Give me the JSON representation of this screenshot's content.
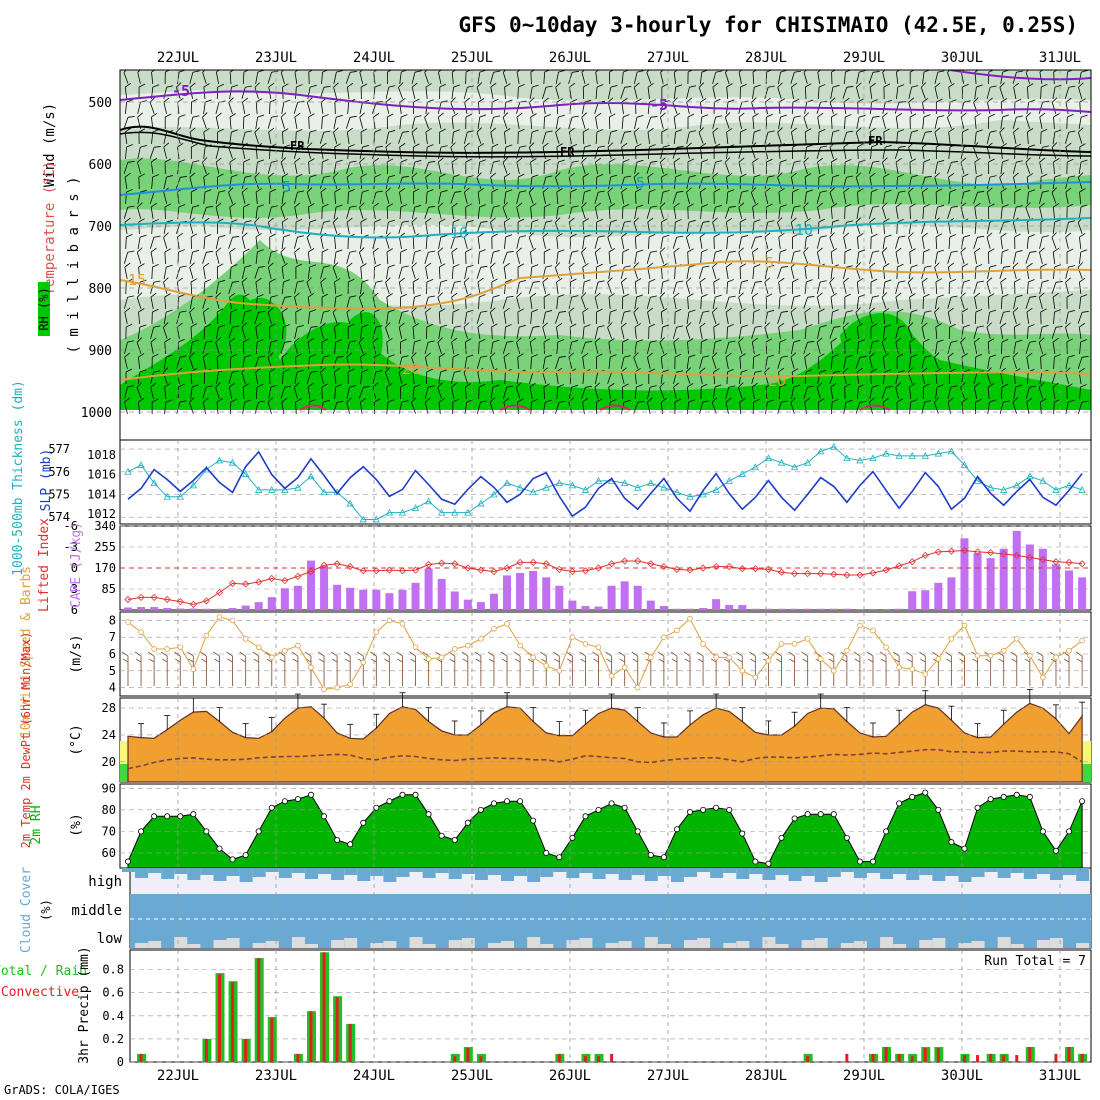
{
  "title": "GFS 0~10day 3-hourly for CHISIMAIO (42.5E, 0.25S)",
  "credit": "GrADS: COLA/IGES",
  "run_total": "Run Total = 7",
  "dates": [
    "22JUL",
    "23JUL",
    "24JUL",
    "25JUL",
    "26JUL",
    "27JUL",
    "28JUL",
    "29JUL",
    "30JUL",
    "31JUL"
  ],
  "colors": {
    "rh_dark": "#00c800",
    "rh_mid": "#78d278",
    "rh_light": "#c8dcc8",
    "rh_pale": "#e8f0e8",
    "slp": "#1e3cc8",
    "thick": "#20b0c0",
    "cape": "#c070f0",
    "li": "#e03030",
    "wind": "#e0a040",
    "temp_fill": "#f0a030",
    "dew": "#804040",
    "rh2m": "#00b400",
    "cloud": "#6aaad2",
    "precip_total": "#20c020",
    "precip_conv": "#e02020"
  },
  "panels": {
    "sounding": {
      "ylabel_wind": "Wind (m/s)",
      "ylabel_temp": "Temperature (°C)",
      "ylabel_rh": "RH (%)",
      "ylabel_p": "( m i l l i b a r s )",
      "levels": [
        "500",
        "600",
        "700",
        "800",
        "900",
        "1000"
      ],
      "contour_labels": {
        "m5": "-5",
        "fr": "FR",
        "t5": "5",
        "t10": "10",
        "t15": "15",
        "t20": "20"
      }
    },
    "slp": {
      "ylabel_thick": "1000-500mb Thickness (dm)",
      "ylabel_slp": "SLP (mb)",
      "left_ticks": [
        "577",
        "576",
        "575",
        "574"
      ],
      "right_ticks": [
        "1018",
        "1016",
        "1014",
        "1012"
      ]
    },
    "cape": {
      "ylabel_li": "Lifted Index",
      "ylabel_cape": "CAPE (J/kg)",
      "left_ticks": [
        "-6",
        "-3",
        "0",
        "3",
        "6"
      ],
      "right_ticks": [
        "340",
        "255",
        "170",
        "85"
      ]
    },
    "wind": {
      "ylabel": "10m Wind Speed & Barbs",
      "unit": "(m/s)",
      "ticks": [
        "8",
        "7",
        "6",
        "5",
        "4"
      ]
    },
    "temp": {
      "ylabel": "2m Temp 2m DewPt (6hr Min/Max)",
      "unit": "(°C)",
      "ticks": [
        "28",
        "24",
        "20"
      ]
    },
    "rh": {
      "ylabel": "2m RH",
      "unit": "(%)",
      "ticks": [
        "90",
        "80",
        "70",
        "60"
      ]
    },
    "cloud": {
      "ylabel": "Cloud Cover",
      "unit": "(%)",
      "levels": [
        "high",
        "middle",
        "low"
      ]
    },
    "precip": {
      "ylabel_total": "Total / Rain",
      "ylabel_conv": "Convective",
      "ylabel": "3hr Precip (mm)",
      "ticks": [
        "0.8",
        "0.6",
        "0.4",
        "0.2",
        "0"
      ]
    }
  },
  "chart_data": [
    {
      "type": "line",
      "name": "SLP (mb)",
      "ylim": [
        1011,
        1019.5
      ],
      "values": [
        1013.5,
        1014.6,
        1016.5,
        1015.5,
        1014.3,
        1015.4,
        1016.7,
        1015.2,
        1014.2,
        1016.8,
        1018.3,
        1016.0,
        1014.6,
        1015.7,
        1017.6,
        1015.9,
        1014.1,
        1015.7,
        1016.8,
        1015.5,
        1013.8,
        1014.5,
        1016.4,
        1015.0,
        1013.5,
        1013.0,
        1014.5,
        1015.8,
        1014.7,
        1013.2,
        1014.0,
        1015.6,
        1016.2,
        1013.8,
        1011.8,
        1012.7,
        1014.6,
        1015.6,
        1013.6,
        1012.5,
        1014.1,
        1015.6,
        1013.6,
        1012.3,
        1014.4,
        1016.1,
        1014.1,
        1012.5,
        1013.7,
        1015.4,
        1013.7,
        1012.4,
        1014.0,
        1015.7,
        1014.8,
        1013.2,
        1014.9,
        1016.3,
        1014.4,
        1012.6,
        1014.3,
        1016.2,
        1014.8,
        1012.5,
        1013.6,
        1015.8,
        1014.1,
        1012.9,
        1014.3,
        1015.5,
        1013.7,
        1012.9,
        1014.4,
        1016.1
      ]
    },
    {
      "type": "line",
      "name": "1000-500mb Thickness (dm)",
      "ylim": [
        573.7,
        577.4
      ],
      "values": [
        576.0,
        576.3,
        575.5,
        574.9,
        574.9,
        575.4,
        576.1,
        576.5,
        576.4,
        575.9,
        575.2,
        575.2,
        575.2,
        575.3,
        575.8,
        575.1,
        575.1,
        574.6,
        573.9,
        573.9,
        574.2,
        574.2,
        574.4,
        574.7,
        574.2,
        574.2,
        574.2,
        574.6,
        575.0,
        575.5,
        575.3,
        575.1,
        575.3,
        575.5,
        575.4,
        575.2,
        575.6,
        575.6,
        575.5,
        575.3,
        575.5,
        575.3,
        575.1,
        574.9,
        575.0,
        575.2,
        575.6,
        575.9,
        576.2,
        576.6,
        576.4,
        576.2,
        576.4,
        576.9,
        577.1,
        576.6,
        576.5,
        576.6,
        576.8,
        576.7,
        576.7,
        576.7,
        576.8,
        576.9,
        576.3,
        575.6,
        575.3,
        575.2,
        575.4,
        575.8,
        575.6,
        575.2,
        575.4,
        575.2
      ]
    },
    {
      "type": "bar",
      "name": "CAPE (J/kg)",
      "ylim": [
        0,
        340
      ],
      "values": [
        10,
        12,
        12,
        8,
        6,
        6,
        5,
        5,
        8,
        18,
        32,
        52,
        88,
        98,
        200,
        178,
        102,
        90,
        82,
        82,
        68,
        82,
        110,
        168,
        126,
        75,
        42,
        32,
        66,
        140,
        150,
        158,
        132,
        98,
        38,
        16,
        14,
        98,
        116,
        98,
        38,
        16,
        5,
        5,
        8,
        44,
        20,
        20,
        5,
        5,
        5,
        5,
        5,
        5,
        5,
        5,
        4,
        4,
        4,
        5,
        76,
        80,
        110,
        132,
        290,
        230,
        210,
        248,
        320,
        265,
        248,
        185,
        160,
        132
      ]
    },
    {
      "type": "line",
      "name": "Lifted Index",
      "ylim": [
        6,
        -6
      ],
      "values": [
        4.5,
        4.2,
        4.2,
        4.5,
        4.8,
        5.2,
        4.7,
        3.5,
        2.2,
        2.3,
        2.0,
        1.5,
        1.8,
        1.2,
        0.5,
        -0.4,
        -0.6,
        -0.2,
        0.4,
        0.4,
        0.3,
        0.4,
        0.3,
        -0.5,
        -0.7,
        -0.6,
        0.0,
        0.3,
        0.5,
        0.0,
        -0.8,
        -0.8,
        -0.6,
        0.2,
        0.5,
        0.4,
        0.0,
        -0.6,
        -1.0,
        -1.0,
        -0.6,
        -0.2,
        0.2,
        0.3,
        0.0,
        -0.2,
        -0.2,
        0.1,
        0.1,
        0.2,
        0.6,
        0.8,
        0.8,
        0.8,
        0.9,
        1.0,
        1.0,
        0.7,
        0.3,
        -0.3,
        -0.9,
        -1.8,
        -2.3,
        -2.4,
        -2.5,
        -2.3,
        -2.2,
        -2.0,
        -1.8,
        -1.5,
        -1.2,
        -0.9,
        -0.8,
        -0.6
      ]
    },
    {
      "type": "line",
      "name": "10m Wind Speed (m/s)",
      "ylim": [
        3.5,
        8.5
      ],
      "values": [
        7.9,
        7.3,
        6.3,
        6.3,
        6.4,
        5.1,
        7.1,
        8.2,
        8.0,
        6.9,
        6.4,
        5.8,
        6.2,
        6.5,
        5.2,
        3.9,
        4.0,
        4.2,
        5.5,
        7.3,
        8.0,
        7.8,
        6.4,
        5.7,
        5.8,
        6.3,
        6.5,
        6.9,
        7.5,
        7.8,
        6.5,
        5.8,
        5.3,
        5.0,
        7.0,
        6.6,
        6.4,
        4.7,
        5.2,
        4.0,
        5.8,
        7.0,
        7.4,
        8.1,
        6.6,
        5.8,
        5.8,
        5.0,
        4.6,
        5.6,
        6.6,
        6.6,
        6.9,
        5.7,
        5.0,
        6.2,
        7.7,
        7.4,
        6.4,
        5.2,
        5.1,
        4.8,
        5.7,
        6.9,
        7.7,
        5.9,
        5.9,
        6.2,
        6.9,
        5.9,
        4.6,
        5.8,
        6.2,
        6.8
      ]
    },
    {
      "type": "area",
      "name": "2m Temp (°C)",
      "ylim": [
        17,
        29.5
      ],
      "values": [
        23.8,
        23.6,
        23.5,
        24.8,
        26.2,
        27.4,
        27.5,
        26.0,
        24.4,
        23.6,
        23.5,
        24.5,
        26.5,
        28.0,
        28.2,
        26.5,
        24.3,
        23.5,
        23.4,
        25.0,
        27.2,
        28.2,
        27.8,
        26.0,
        24.6,
        24.0,
        24.0,
        25.5,
        27.3,
        28.2,
        28.0,
        26.0,
        24.3,
        23.9,
        23.9,
        25.6,
        27.2,
        28.0,
        27.7,
        26.0,
        24.3,
        23.7,
        23.7,
        25.5,
        27.0,
        28.0,
        27.5,
        26.0,
        24.4,
        24.0,
        24.0,
        25.3,
        27.2,
        28.0,
        27.9,
        26.0,
        24.3,
        23.7,
        23.8,
        25.6,
        27.4,
        28.5,
        28.0,
        26.2,
        24.3,
        23.6,
        23.7,
        25.6,
        27.4,
        28.7,
        28.0,
        26.4,
        24.2,
        26.8
      ]
    },
    {
      "type": "line",
      "name": "2m DewPt (°C)",
      "ylim": [
        17,
        29.5
      ],
      "values": [
        19.0,
        19.4,
        19.9,
        20.3,
        20.5,
        20.6,
        20.4,
        20.3,
        20.3,
        20.4,
        20.6,
        20.7,
        20.8,
        20.8,
        20.9,
        21.0,
        21.1,
        21.0,
        20.5,
        20.3,
        20.7,
        20.9,
        20.8,
        20.5,
        20.3,
        20.2,
        20.4,
        20.5,
        20.6,
        20.5,
        20.5,
        20.3,
        20.3,
        20.0,
        20.4,
        20.9,
        20.8,
        20.6,
        20.5,
        20.0,
        19.9,
        20.2,
        20.4,
        20.5,
        20.6,
        20.6,
        20.3,
        20.0,
        20.5,
        20.7,
        20.7,
        20.6,
        20.7,
        20.9,
        21.1,
        21.0,
        21.1,
        21.3,
        21.2,
        21.4,
        21.6,
        21.8,
        21.8,
        21.5,
        21.5,
        21.4,
        21.4,
        21.6,
        21.6,
        21.5,
        21.5,
        21.5,
        21.2,
        20.0
      ]
    },
    {
      "type": "area",
      "name": "2m RH (%)",
      "ylim": [
        53,
        92
      ],
      "values": [
        56,
        70,
        77,
        77,
        77,
        78,
        70,
        62,
        57,
        59,
        70,
        81,
        84,
        85,
        87,
        77,
        66,
        64,
        74,
        81,
        84,
        87,
        87,
        78,
        68,
        66,
        74,
        80,
        83,
        84,
        84,
        75,
        60,
        58,
        67,
        77,
        80,
        83,
        81,
        70,
        59,
        58,
        71,
        79,
        80,
        81,
        80,
        69,
        56,
        55,
        67,
        76,
        78,
        78,
        78,
        67,
        56,
        56,
        70,
        83,
        86,
        88,
        80,
        65,
        62,
        81,
        85,
        86,
        87,
        86,
        70,
        61,
        70,
        84
      ]
    },
    {
      "type": "bar",
      "name": "3hr Precip Total (mm)",
      "ylim": [
        0,
        0.97
      ],
      "values": [
        0,
        0.07,
        0,
        0,
        0,
        0,
        0.2,
        0.77,
        0.7,
        0.2,
        0.9,
        0.39,
        0,
        0.07,
        0.44,
        0.95,
        0.57,
        0.33,
        0,
        0,
        0,
        0,
        0,
        0,
        0,
        0.07,
        0.13,
        0.07,
        0,
        0,
        0,
        0,
        0,
        0.07,
        0,
        0.07,
        0.07,
        0,
        0,
        0,
        0,
        0,
        0,
        0,
        0,
        0,
        0,
        0,
        0,
        0,
        0,
        0,
        0.07,
        0,
        0,
        0,
        0,
        0.07,
        0.13,
        0.07,
        0.07,
        0.13,
        0.13,
        0,
        0.07,
        0,
        0.07,
        0.07,
        0,
        0.13,
        0,
        0,
        0.13,
        0.07
      ]
    },
    {
      "type": "bar",
      "name": "3hr Precip Convective (mm)",
      "ylim": [
        0,
        0.97
      ],
      "values": [
        0,
        0.07,
        0,
        0,
        0,
        0,
        0.2,
        0.76,
        0.69,
        0.2,
        0.9,
        0.38,
        0,
        0.07,
        0.44,
        0.95,
        0.56,
        0.33,
        0,
        0,
        0,
        0,
        0,
        0,
        0,
        0.05,
        0.12,
        0.05,
        0,
        0,
        0,
        0,
        0,
        0.07,
        0,
        0.05,
        0.05,
        0.07,
        0,
        0,
        0,
        0,
        0,
        0,
        0,
        0,
        0,
        0,
        0,
        0,
        0,
        0,
        0.05,
        0,
        0,
        0.07,
        0,
        0.07,
        0.13,
        0.07,
        0.05,
        0.12,
        0.12,
        0,
        0.06,
        0.06,
        0.07,
        0.06,
        0.06,
        0.13,
        0,
        0.07,
        0.13,
        0.07
      ]
    }
  ]
}
